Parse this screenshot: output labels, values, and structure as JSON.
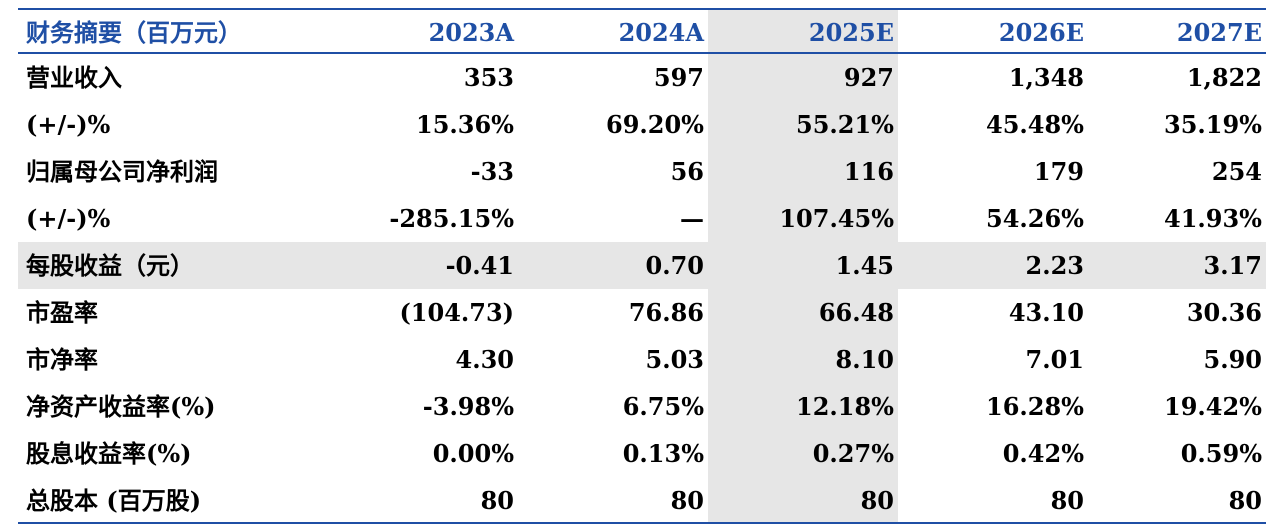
{
  "table": {
    "header": [
      "财务摘要（百万元）",
      "2023A",
      "2024A",
      "2025E",
      "2026E",
      "2027E"
    ],
    "rows": [
      [
        "营业收入",
        "353",
        "597",
        "927",
        "1,348",
        "1,822"
      ],
      [
        "(+/-)%",
        "15.36%",
        "69.20%",
        "55.21%",
        "45.48%",
        "35.19%"
      ],
      [
        "归属母公司净利润",
        "-33",
        "56",
        "116",
        "179",
        "254"
      ],
      [
        "(+/-)%",
        "-285.15%",
        "—",
        "107.45%",
        "54.26%",
        "41.93%"
      ],
      [
        "每股收益（元）",
        "-0.41",
        "0.70",
        "1.45",
        "2.23",
        "3.17"
      ],
      [
        "市盈率",
        "(104.73)",
        "76.86",
        "66.48",
        "43.10",
        "30.36"
      ],
      [
        "市净率",
        "4.30",
        "5.03",
        "8.10",
        "7.01",
        "5.90"
      ],
      [
        "净资产收益率(%)",
        "-3.98%",
        "6.75%",
        "12.18%",
        "16.28%",
        "19.42%"
      ],
      [
        "股息收益率(%)",
        "0.00%",
        "0.13%",
        "0.27%",
        "0.42%",
        "0.59%"
      ],
      [
        "总股本 (百万股)",
        "80",
        "80",
        "80",
        "80",
        "80"
      ]
    ],
    "highlight_column": "2025E",
    "highlight_row": "每股收益（元）",
    "colors": {
      "header_text": "#1f4fa5",
      "rule": "#1f4fa5",
      "highlight": "#e6e6e6"
    }
  }
}
